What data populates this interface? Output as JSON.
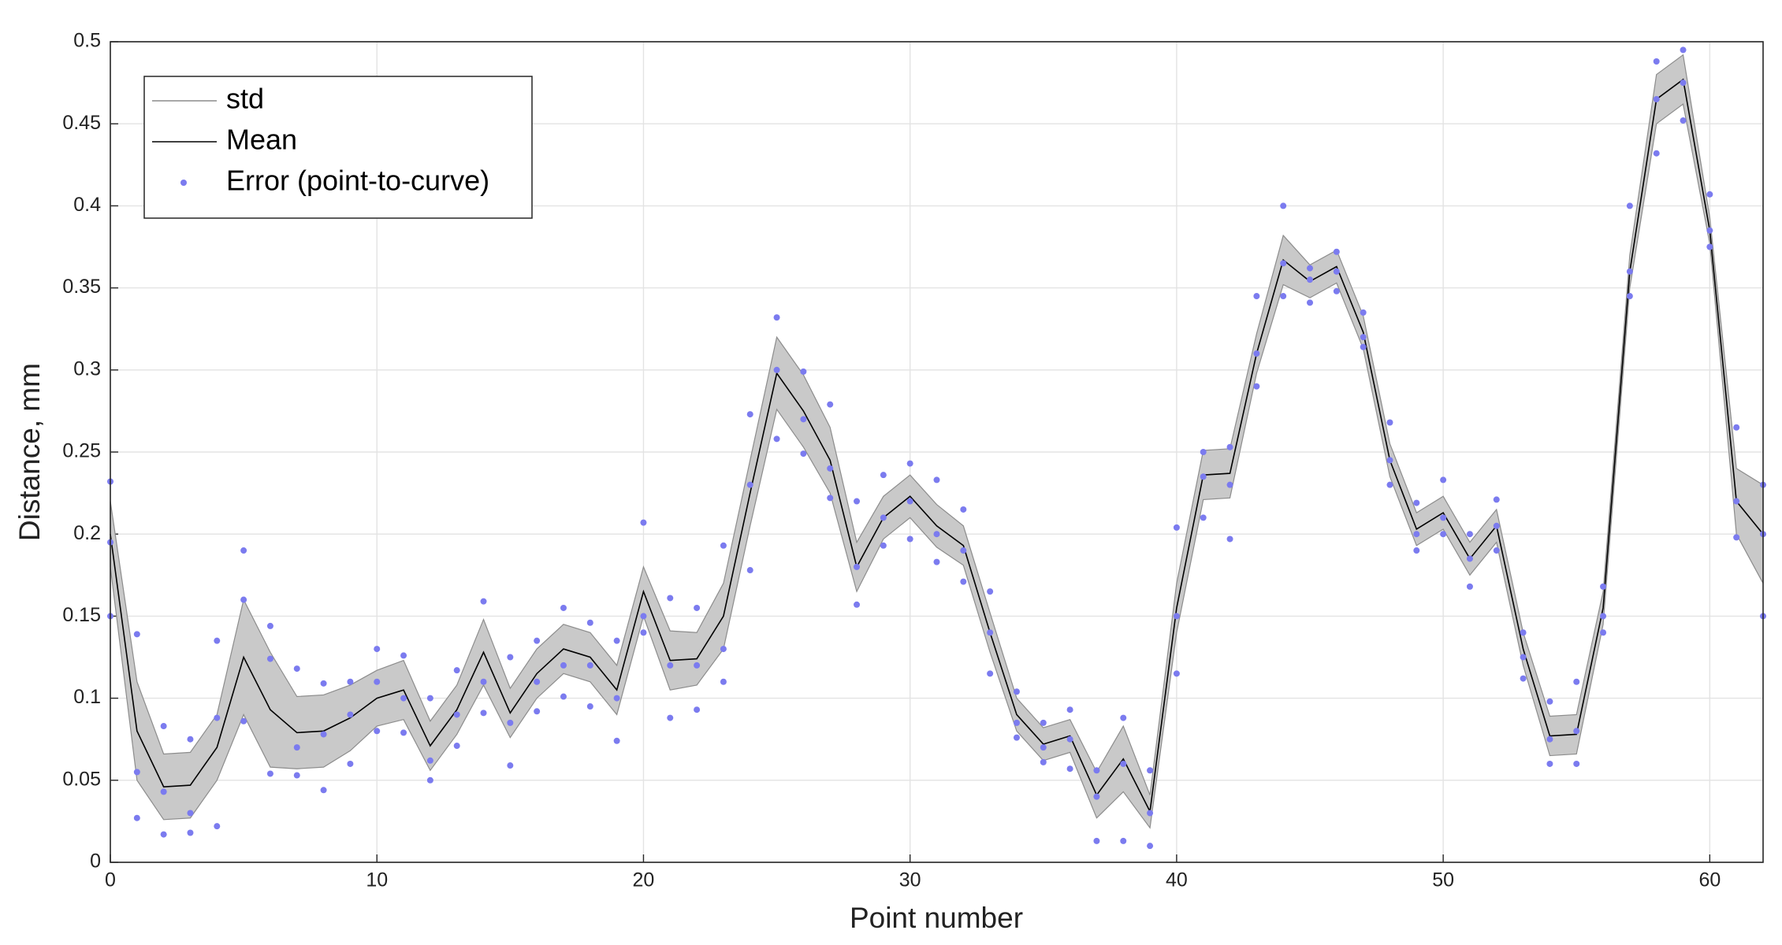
{
  "chart_data": {
    "type": "line",
    "xlabel": "Point number",
    "ylabel": "Distance, mm",
    "x": [
      0,
      1,
      2,
      3,
      4,
      5,
      6,
      7,
      8,
      9,
      10,
      11,
      12,
      13,
      14,
      15,
      16,
      17,
      18,
      19,
      20,
      21,
      22,
      23,
      24,
      25,
      26,
      27,
      28,
      29,
      30,
      31,
      32,
      33,
      34,
      35,
      36,
      37,
      38,
      39,
      40,
      41,
      42,
      43,
      44,
      45,
      46,
      47,
      48,
      49,
      50,
      51,
      52,
      53,
      54,
      55,
      56,
      57,
      58,
      59,
      60,
      61,
      62
    ],
    "series": [
      {
        "name": "std",
        "color": "#8c8c8c",
        "fill": "#c9c9c9",
        "values": [
          0.02,
          0.03,
          0.02,
          0.02,
          0.02,
          0.035,
          0.035,
          0.022,
          0.022,
          0.02,
          0.017,
          0.018,
          0.015,
          0.015,
          0.02,
          0.015,
          0.015,
          0.015,
          0.015,
          0.015,
          0.015,
          0.018,
          0.016,
          0.02,
          0.02,
          0.022,
          0.022,
          0.02,
          0.015,
          0.013,
          0.013,
          0.013,
          0.012,
          0.012,
          0.01,
          0.01,
          0.01,
          0.014,
          0.02,
          0.01,
          0.015,
          0.015,
          0.015,
          0.012,
          0.015,
          0.01,
          0.01,
          0.01,
          0.01,
          0.01,
          0.01,
          0.01,
          0.01,
          0.01,
          0.012,
          0.012,
          0.01,
          0.01,
          0.015,
          0.015,
          0.008,
          0.02,
          0.03
        ]
      },
      {
        "name": "Mean",
        "color": "#000000",
        "values": [
          0.2,
          0.08,
          0.046,
          0.047,
          0.07,
          0.125,
          0.093,
          0.079,
          0.08,
          0.088,
          0.1,
          0.105,
          0.071,
          0.093,
          0.128,
          0.091,
          0.115,
          0.13,
          0.125,
          0.105,
          0.165,
          0.123,
          0.124,
          0.15,
          0.225,
          0.298,
          0.275,
          0.245,
          0.18,
          0.21,
          0.223,
          0.205,
          0.193,
          0.14,
          0.09,
          0.072,
          0.077,
          0.041,
          0.063,
          0.031,
          0.155,
          0.236,
          0.237,
          0.31,
          0.367,
          0.354,
          0.363,
          0.323,
          0.245,
          0.203,
          0.213,
          0.185,
          0.205,
          0.13,
          0.077,
          0.078,
          0.155,
          0.36,
          0.465,
          0.477,
          0.385,
          0.22,
          0.2
        ]
      },
      {
        "name": "Error (point-to-curve)",
        "type": "scatter",
        "color": "#7b7bef",
        "x": [
          0,
          0,
          0,
          1,
          1,
          1,
          2,
          2,
          2,
          3,
          3,
          3,
          4,
          4,
          4,
          5,
          5,
          5,
          6,
          6,
          6,
          7,
          7,
          7,
          8,
          8,
          8,
          9,
          9,
          9,
          10,
          10,
          10,
          11,
          11,
          11,
          12,
          12,
          12,
          13,
          13,
          13,
          14,
          14,
          14,
          15,
          15,
          15,
          16,
          16,
          16,
          17,
          17,
          17,
          18,
          18,
          18,
          19,
          19,
          19,
          20,
          20,
          20,
          21,
          21,
          21,
          22,
          22,
          22,
          23,
          23,
          23,
          24,
          24,
          24,
          25,
          25,
          25,
          26,
          26,
          26,
          27,
          27,
          27,
          28,
          28,
          28,
          29,
          29,
          29,
          30,
          30,
          30,
          31,
          31,
          31,
          32,
          32,
          32,
          33,
          33,
          33,
          34,
          34,
          34,
          35,
          35,
          35,
          36,
          36,
          36,
          37,
          37,
          37,
          38,
          38,
          38,
          39,
          39,
          39,
          40,
          40,
          40,
          41,
          41,
          41,
          42,
          42,
          42,
          43,
          43,
          43,
          44,
          44,
          44,
          45,
          45,
          45,
          46,
          46,
          46,
          47,
          47,
          47,
          48,
          48,
          48,
          49,
          49,
          49,
          50,
          50,
          50,
          51,
          51,
          51,
          52,
          52,
          52,
          53,
          53,
          53,
          54,
          54,
          54,
          55,
          55,
          55,
          56,
          56,
          56,
          57,
          57,
          57,
          58,
          58,
          58,
          59,
          59,
          59,
          60,
          60,
          60,
          61,
          61,
          61,
          62,
          62,
          62
        ],
        "values": [
          0.232,
          0.195,
          0.15,
          0.139,
          0.055,
          0.027,
          0.083,
          0.043,
          0.017,
          0.075,
          0.03,
          0.018,
          0.135,
          0.088,
          0.022,
          0.19,
          0.16,
          0.086,
          0.144,
          0.124,
          0.054,
          0.118,
          0.07,
          0.053,
          0.109,
          0.078,
          0.044,
          0.11,
          0.09,
          0.06,
          0.13,
          0.11,
          0.08,
          0.126,
          0.1,
          0.079,
          0.1,
          0.062,
          0.05,
          0.117,
          0.09,
          0.071,
          0.159,
          0.11,
          0.091,
          0.125,
          0.085,
          0.059,
          0.135,
          0.11,
          0.092,
          0.155,
          0.12,
          0.101,
          0.146,
          0.12,
          0.095,
          0.135,
          0.1,
          0.074,
          0.207,
          0.15,
          0.14,
          0.161,
          0.12,
          0.088,
          0.155,
          0.12,
          0.093,
          0.193,
          0.13,
          0.11,
          0.273,
          0.23,
          0.178,
          0.332,
          0.3,
          0.258,
          0.299,
          0.27,
          0.249,
          0.279,
          0.24,
          0.222,
          0.22,
          0.18,
          0.157,
          0.236,
          0.21,
          0.193,
          0.243,
          0.22,
          0.197,
          0.233,
          0.2,
          0.183,
          0.215,
          0.19,
          0.171,
          0.165,
          0.14,
          0.115,
          0.104,
          0.085,
          0.076,
          0.085,
          0.07,
          0.061,
          0.093,
          0.075,
          0.057,
          0.056,
          0.04,
          0.013,
          0.088,
          0.06,
          0.013,
          0.056,
          0.03,
          0.01,
          0.204,
          0.15,
          0.115,
          0.25,
          0.235,
          0.21,
          0.253,
          0.23,
          0.197,
          0.345,
          0.31,
          0.29,
          0.4,
          0.365,
          0.345,
          0.362,
          0.355,
          0.341,
          0.372,
          0.36,
          0.348,
          0.335,
          0.32,
          0.314,
          0.268,
          0.245,
          0.23,
          0.219,
          0.2,
          0.19,
          0.233,
          0.21,
          0.2,
          0.2,
          0.185,
          0.168,
          0.221,
          0.205,
          0.19,
          0.14,
          0.125,
          0.112,
          0.098,
          0.075,
          0.06,
          0.11,
          0.08,
          0.06,
          0.168,
          0.15,
          0.14,
          0.4,
          0.36,
          0.345,
          0.488,
          0.465,
          0.432,
          0.495,
          0.475,
          0.452,
          0.407,
          0.385,
          0.375,
          0.265,
          0.22,
          0.198,
          0.23,
          0.2,
          0.15
        ]
      }
    ],
    "xlim": [
      0,
      62
    ],
    "ylim": [
      0,
      0.5
    ],
    "xticks": [
      0,
      10,
      20,
      30,
      40,
      50,
      60
    ],
    "yticks": [
      0,
      0.05,
      0.1,
      0.15,
      0.2,
      0.25,
      0.3,
      0.35,
      0.4,
      0.45,
      0.5
    ],
    "grid": true,
    "legend": "upper-left"
  }
}
